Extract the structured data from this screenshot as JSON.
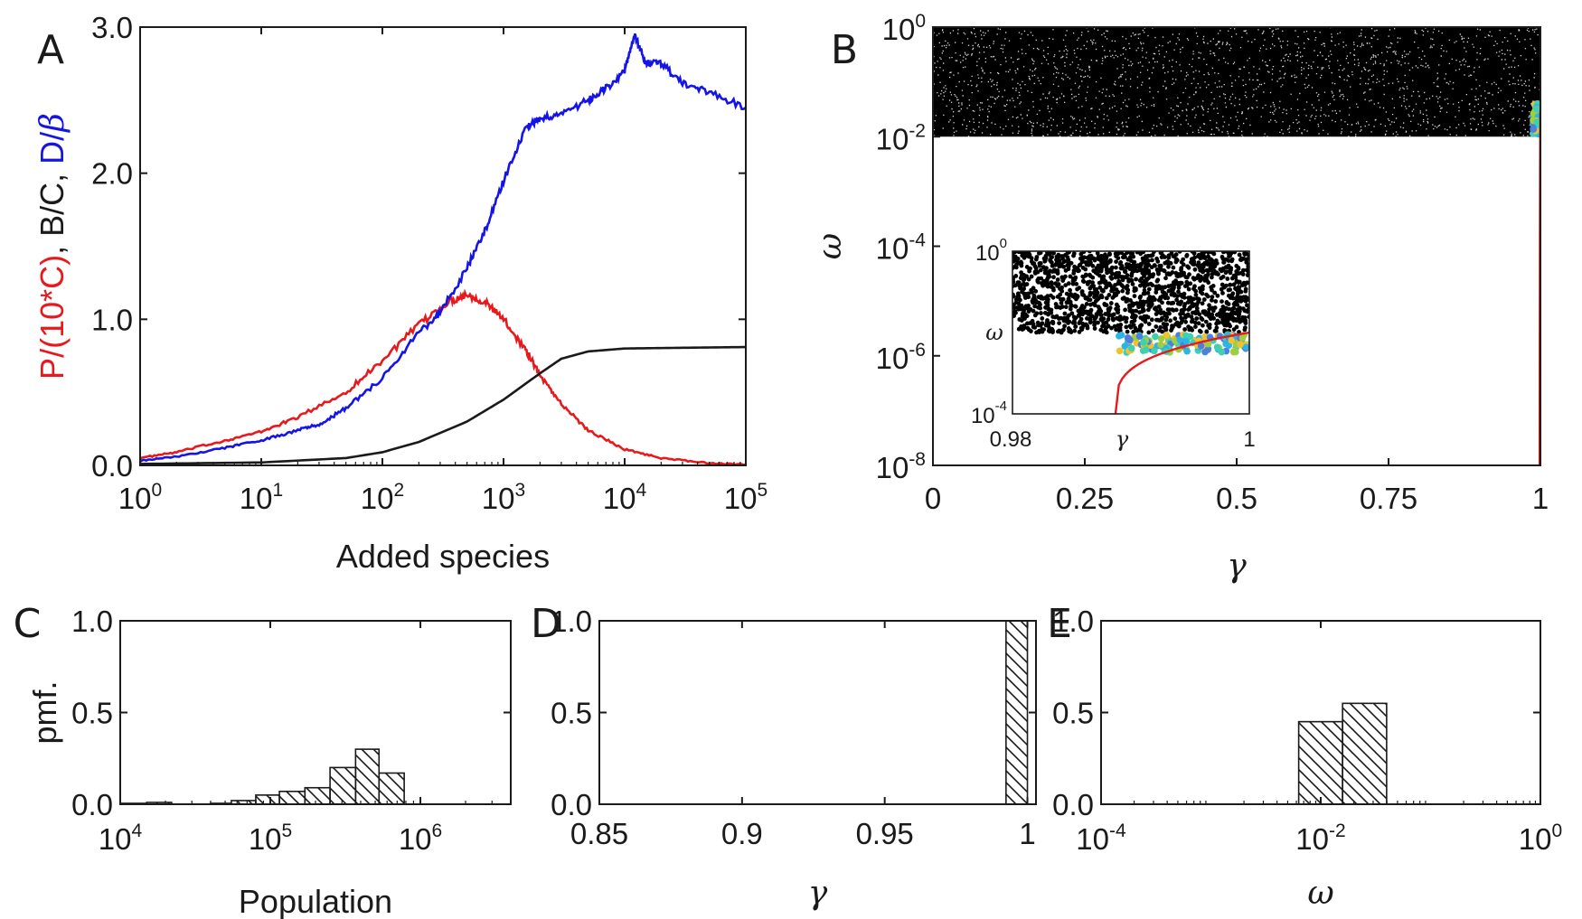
{
  "chart_data": [
    {
      "panel": "A",
      "type": "line",
      "xscale": "log",
      "xlim": [
        1,
        100000
      ],
      "ylim": [
        0,
        3
      ],
      "xlabel": "Added species",
      "ylabel_parts": [
        {
          "text": "P/(10*C)",
          "color": "#e8191c"
        },
        {
          "text": ", B/C, ",
          "color": "#1a1a1a"
        },
        {
          "text": "D/",
          "color": "#1414e6"
        },
        {
          "text": "β",
          "color": "#1414e6",
          "italic": true
        }
      ],
      "xticks": [
        {
          "base": "10",
          "exp": "0"
        },
        {
          "base": "10",
          "exp": "1"
        },
        {
          "base": "10",
          "exp": "2"
        },
        {
          "base": "10",
          "exp": "3"
        },
        {
          "base": "10",
          "exp": "4"
        },
        {
          "base": "10",
          "exp": "5"
        }
      ],
      "yticks": [
        "0.0",
        "1.0",
        "2.0",
        "3.0"
      ],
      "series": [
        {
          "color": "#e8191c",
          "x": [
            1,
            2,
            5,
            10,
            20,
            50,
            100,
            200,
            350,
            500,
            700,
            1000,
            1500,
            2000,
            3000,
            5000,
            10000,
            20000,
            50000,
            100000
          ],
          "y": [
            0.05,
            0.09,
            0.17,
            0.23,
            0.33,
            0.5,
            0.72,
            0.96,
            1.12,
            1.17,
            1.12,
            1.0,
            0.8,
            0.62,
            0.42,
            0.24,
            0.11,
            0.05,
            0.015,
            0.005
          ]
        },
        {
          "color": "#1a1a1a",
          "x": [
            1,
            10,
            50,
            100,
            200,
            500,
            1000,
            2000,
            3000,
            5000,
            10000,
            30000,
            100000
          ],
          "y": [
            0.01,
            0.02,
            0.05,
            0.09,
            0.16,
            0.3,
            0.45,
            0.63,
            0.73,
            0.78,
            0.8,
            0.805,
            0.81
          ]
        },
        {
          "color": "#1414e6",
          "x": [
            1,
            2,
            5,
            10,
            20,
            30,
            50,
            100,
            200,
            300,
            500,
            700,
            1000,
            1500,
            2000,
            3000,
            5000,
            7000,
            10000,
            12000,
            15000,
            20000,
            30000,
            50000,
            100000
          ],
          "y": [
            0.03,
            0.06,
            0.12,
            0.17,
            0.24,
            0.28,
            0.39,
            0.6,
            0.9,
            1.05,
            1.35,
            1.6,
            1.95,
            2.3,
            2.38,
            2.4,
            2.5,
            2.58,
            2.7,
            2.95,
            2.75,
            2.75,
            2.62,
            2.55,
            2.45
          ]
        }
      ]
    },
    {
      "panel": "B",
      "type": "scatter",
      "xlim": [
        0,
        1
      ],
      "yscale": "log",
      "ylim": [
        1e-08,
        1
      ],
      "xlabel": "γ",
      "ylabel": "ω",
      "xticks": [
        "0",
        "0.25",
        "0.5",
        "0.75",
        "1"
      ],
      "yticks": [
        {
          "base": "10",
          "exp": "0"
        },
        {
          "base": "10",
          "exp": "-2"
        },
        {
          "base": "10",
          "exp": "-4"
        },
        {
          "base": "10",
          "exp": "-6"
        },
        {
          "base": "10",
          "exp": "-8"
        }
      ],
      "scatter_region": {
        "x": [
          0,
          1
        ],
        "omega": [
          0.01,
          1
        ],
        "color": "#000000"
      },
      "curve": {
        "color": "#e8191c",
        "x": [
          0.9988,
          0.999,
          0.9993,
          0.9995,
          0.9997,
          0.9999,
          1.0
        ],
        "y": [
          1e-08,
          1e-06,
          0.0001,
          0.001,
          0.005,
          0.015,
          0.03
        ]
      },
      "inset": {
        "xlim": [
          0.98,
          1
        ],
        "ylim": [
          0.0001,
          1
        ],
        "xlabel": "γ",
        "ylabel": "ω",
        "xticks": [
          "0.98",
          "1"
        ],
        "yticks": [
          {
            "base": "10",
            "exp": "0"
          },
          {
            "base": "10",
            "exp": "-4"
          }
        ]
      }
    },
    {
      "panel": "C",
      "type": "bar",
      "xscale": "log",
      "xlim": [
        10000,
        4000000
      ],
      "ylim": [
        0,
        1
      ],
      "xlabel": "Population",
      "ylabel": "pmf.",
      "xticks": [
        {
          "base": "10",
          "exp": "4"
        },
        {
          "base": "10",
          "exp": "5"
        },
        {
          "base": "10",
          "exp": "6"
        }
      ],
      "yticks": [
        "0.0",
        "0.5",
        "1.0"
      ],
      "bins": [
        {
          "x0": 10000,
          "x1": 15000,
          "value": 0.005
        },
        {
          "x0": 15000,
          "x1": 22000,
          "value": 0.01
        },
        {
          "x0": 40000,
          "x1": 55000,
          "value": 0.005
        },
        {
          "x0": 55000,
          "x1": 80000,
          "value": 0.02
        },
        {
          "x0": 80000,
          "x1": 115000,
          "value": 0.05
        },
        {
          "x0": 115000,
          "x1": 170000,
          "value": 0.07
        },
        {
          "x0": 170000,
          "x1": 250000,
          "value": 0.09
        },
        {
          "x0": 250000,
          "x1": 370000,
          "value": 0.2
        },
        {
          "x0": 370000,
          "x1": 530000,
          "value": 0.3
        },
        {
          "x0": 530000,
          "x1": 780000,
          "value": 0.17
        }
      ]
    },
    {
      "panel": "D",
      "type": "bar",
      "xlim": [
        0.85,
        1.003
      ],
      "ylim": [
        0,
        1
      ],
      "xlabel": "γ",
      "xticks": [
        "0.85",
        "0.9",
        "0.95",
        "1"
      ],
      "xtick_values": [
        0.85,
        0.9,
        0.95,
        1
      ],
      "yticks": [
        "0.0",
        "0.5",
        "1.0"
      ],
      "bins": [
        {
          "x0": 0.9925,
          "x1": 1.0,
          "value": 1.0
        }
      ]
    },
    {
      "panel": "E",
      "type": "bar",
      "xscale": "log",
      "xlim": [
        0.0001,
        1
      ],
      "ylim": [
        0,
        1
      ],
      "xlabel": "ω",
      "xticks": [
        {
          "base": "10",
          "exp": "-4"
        },
        {
          "base": "10",
          "exp": "-2"
        },
        {
          "base": "10",
          "exp": "0"
        }
      ],
      "yticks": [
        "0.0",
        "0.5",
        "1.0"
      ],
      "bins": [
        {
          "x0": 0.0063,
          "x1": 0.0158,
          "value": 0.45
        },
        {
          "x0": 0.0158,
          "x1": 0.0398,
          "value": 0.55
        }
      ]
    }
  ]
}
